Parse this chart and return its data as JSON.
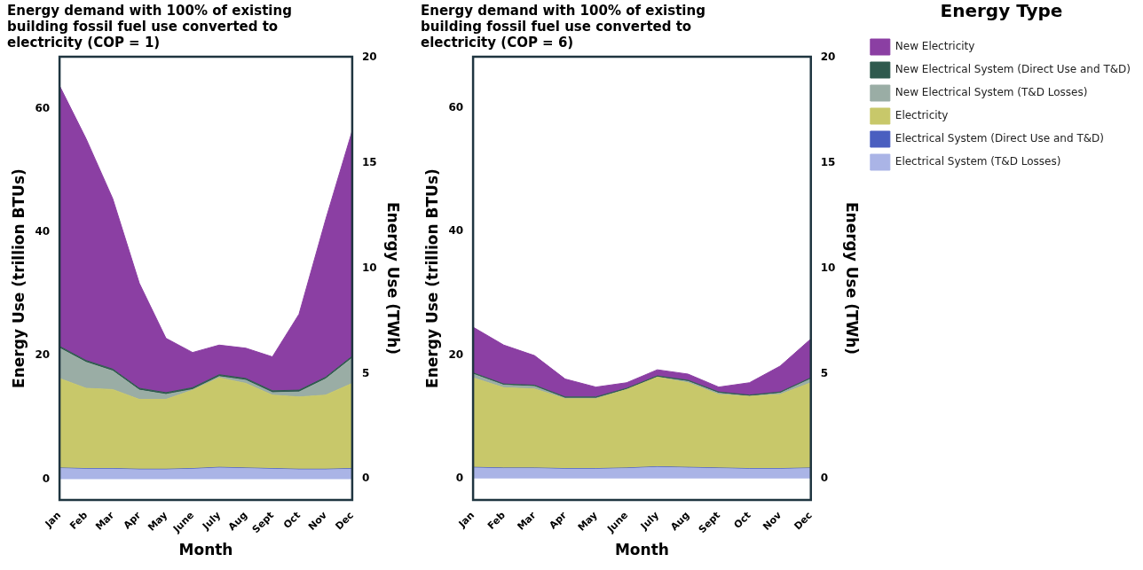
{
  "chart_data": [
    {
      "type": "area",
      "title": "Energy demand with 100% of existing building fossil fuel use converted to electricity (COP = 1)",
      "xlabel": "Month",
      "ylabel": "Energy Use (trillion BTUs)",
      "y2label": "Energy Use (TWh)",
      "stacked": true,
      "legend": false,
      "grid": false,
      "categories": [
        "Jan",
        "Feb",
        "Mar",
        "Apr",
        "May",
        "June",
        "July",
        "Aug",
        "Sept",
        "Oct",
        "Nov",
        "Dec"
      ],
      "ylim": [
        -3.4,
        68.4
      ],
      "yticks": [
        0,
        20,
        40,
        60
      ],
      "y2lim": [
        -1,
        20.05
      ],
      "y2ticks": [
        0,
        5,
        10,
        15,
        20
      ],
      "series": [
        {
          "color": "#aab4e6",
          "values": [
            1.7,
            1.6,
            1.6,
            1.5,
            1.5,
            1.6,
            1.8,
            1.7,
            1.6,
            1.5,
            1.5,
            1.6
          ]
        },
        {
          "color": "#4a5fc0",
          "values": [
            0.1,
            0.1,
            0.1,
            0.1,
            0.1,
            0.1,
            0.1,
            0.1,
            0.1,
            0.1,
            0.1,
            0.1
          ]
        },
        {
          "color": "#c8c86a",
          "values": [
            14.5,
            13.0,
            12.8,
            11.3,
            11.3,
            12.7,
            14.5,
            13.7,
            11.9,
            11.7,
            12.0,
            13.8
          ]
        },
        {
          "color": "#9aada5",
          "values": [
            4.9,
            4.2,
            3.0,
            1.5,
            0.8,
            0.1,
            0.2,
            0.5,
            0.4,
            0.8,
            2.6,
            4.1
          ]
        },
        {
          "color": "#2f5a4e",
          "values": [
            0.3,
            0.3,
            0.3,
            0.3,
            0.3,
            0.3,
            0.3,
            0.3,
            0.3,
            0.3,
            0.3,
            0.3
          ]
        },
        {
          "color": "#8b3fa3",
          "values": [
            42.2,
            35.9,
            27.6,
            17.0,
            8.8,
            5.7,
            4.8,
            4.9,
            5.5,
            12.3,
            25.5,
            36.5
          ]
        }
      ]
    },
    {
      "type": "area",
      "title": "Energy demand with 100% of existing building fossil fuel use converted to electricity (COP = 6)",
      "xlabel": "Month",
      "ylabel": "Energy Use (trillion BTUs)",
      "y2label": "Energy Use (TWh)",
      "stacked": true,
      "legend": "right",
      "legend_title": "Energy Type",
      "grid": false,
      "categories": [
        "Jan",
        "Feb",
        "Mar",
        "Apr",
        "May",
        "June",
        "July",
        "Aug",
        "Sept",
        "Oct",
        "Nov",
        "Dec"
      ],
      "ylim": [
        -3.5,
        68.3
      ],
      "yticks": [
        0,
        20,
        40,
        60
      ],
      "y2lim": [
        -1,
        20.05
      ],
      "y2ticks": [
        0,
        5,
        10,
        15,
        20
      ],
      "series": [
        {
          "name": "Electrical System (T&D Losses)",
          "color": "#aab4e6",
          "values": [
            1.7,
            1.6,
            1.6,
            1.5,
            1.5,
            1.6,
            1.8,
            1.7,
            1.6,
            1.5,
            1.5,
            1.6
          ]
        },
        {
          "name": "Electrical System (Direct Use and T&D)",
          "color": "#4a5fc0",
          "values": [
            0.1,
            0.1,
            0.1,
            0.1,
            0.1,
            0.1,
            0.1,
            0.1,
            0.1,
            0.1,
            0.1,
            0.1
          ]
        },
        {
          "name": "Electricity",
          "color": "#c8c86a",
          "values": [
            14.5,
            13.0,
            12.8,
            11.3,
            11.3,
            12.7,
            14.5,
            13.7,
            11.9,
            11.7,
            12.0,
            13.8
          ]
        },
        {
          "name": "New Electrical System (T&D Losses)",
          "color": "#9aada5",
          "values": [
            0.6,
            0.4,
            0.4,
            0.1,
            0.1,
            0.0,
            0.0,
            0.2,
            0.2,
            0.0,
            0.2,
            0.6
          ]
        },
        {
          "name": "New Electrical System (Direct Use and T&D)",
          "color": "#2f5a4e",
          "values": [
            0.2,
            0.2,
            0.2,
            0.2,
            0.2,
            0.2,
            0.2,
            0.2,
            0.2,
            0.2,
            0.2,
            0.2
          ]
        },
        {
          "name": "New Electricity",
          "color": "#8b3fa3",
          "values": [
            7.4,
            6.3,
            4.8,
            2.9,
            1.6,
            0.9,
            1.0,
            1.0,
            0.8,
            2.0,
            4.2,
            6.3
          ]
        }
      ]
    }
  ]
}
